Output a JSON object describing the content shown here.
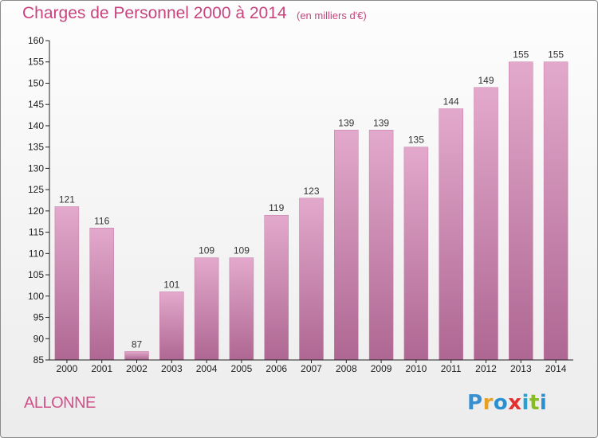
{
  "title": "Charges de Personnel 2000 à 2014",
  "subtitle": "(en milliers d'€)",
  "commune": "ALLONNE",
  "logo": {
    "letters": [
      "P",
      "r",
      "o",
      "x",
      "i",
      "t",
      "i"
    ],
    "colors": [
      "#3a8fd0",
      "#e8a020",
      "#2a8fd0",
      "#e23030",
      "#2a9fd0",
      "#88bb22",
      "#2a8fd0"
    ]
  },
  "colors": {
    "title": "#c8447e",
    "bar_top": "#e3a9cc",
    "bar_bottom": "#ae6792",
    "axis": "#222222",
    "grid": "#cccccc"
  },
  "chart_data": {
    "type": "bar",
    "title": "Charges de Personnel 2000 à 2014",
    "subtitle": "(en milliers d'€)",
    "categories": [
      "2000",
      "2001",
      "2002",
      "2003",
      "2004",
      "2005",
      "2006",
      "2007",
      "2008",
      "2009",
      "2010",
      "2011",
      "2012",
      "2013",
      "2014"
    ],
    "values": [
      121,
      116,
      87,
      101,
      109,
      109,
      119,
      123,
      139,
      139,
      135,
      144,
      149,
      155,
      155
    ],
    "ylim": [
      85,
      160
    ],
    "yticks": [
      85,
      90,
      95,
      100,
      105,
      110,
      115,
      120,
      125,
      130,
      135,
      140,
      145,
      150,
      155,
      160
    ],
    "xlabel": "",
    "ylabel": "",
    "grid": false,
    "data_labels": true
  }
}
